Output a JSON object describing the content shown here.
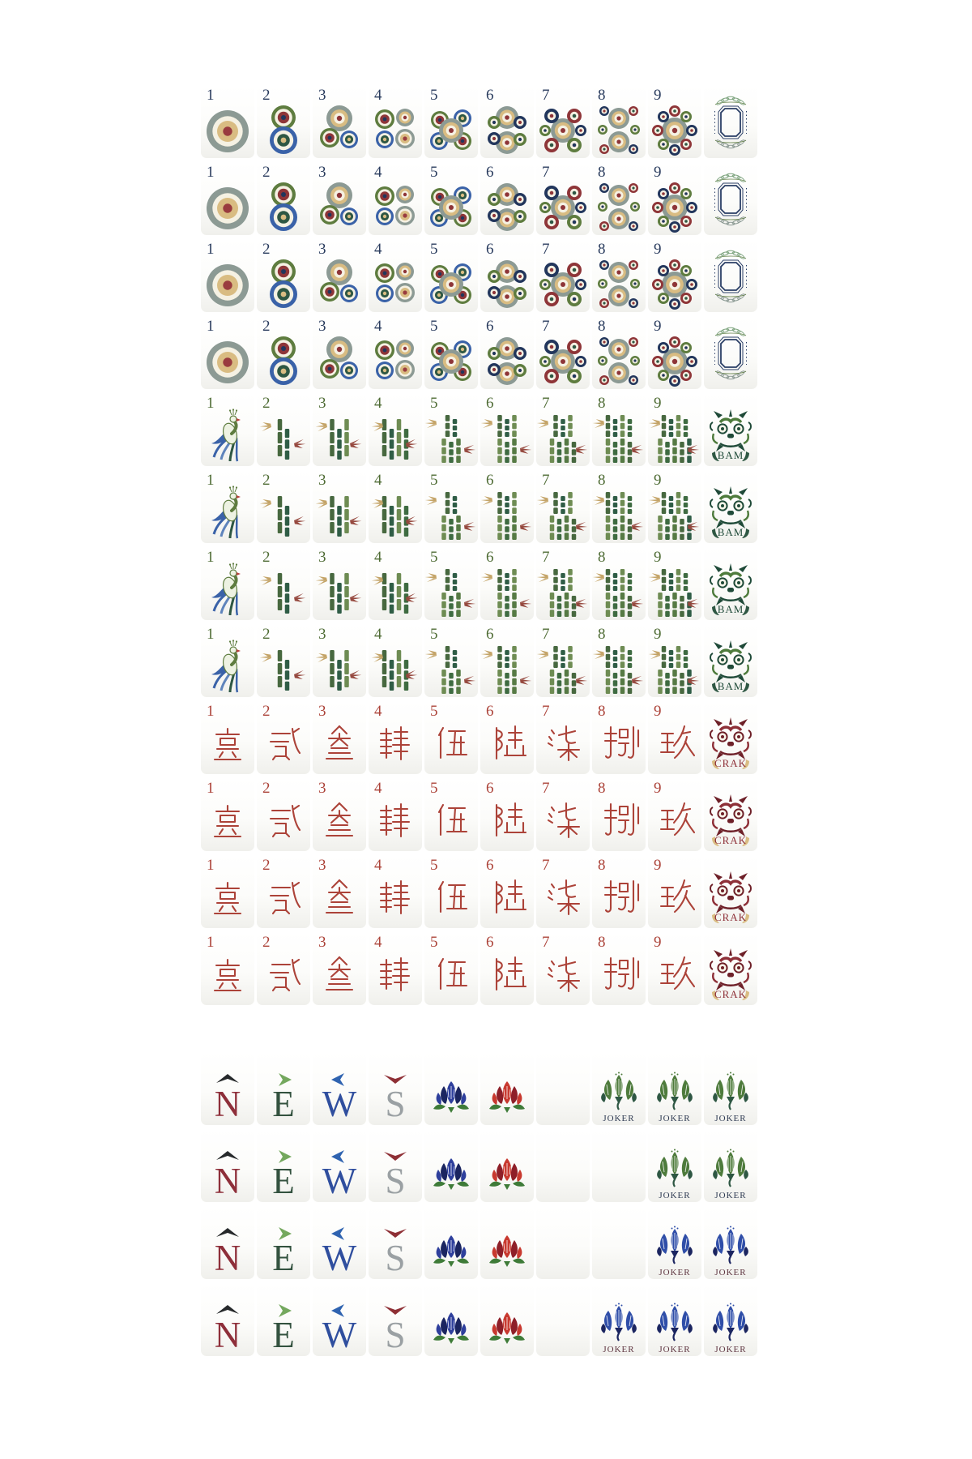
{
  "canvas": {
    "background": "#ffffff",
    "tile_face": "#fcfcfa"
  },
  "suits": {
    "dots": {
      "id": "dots",
      "rows": 4,
      "number_color": "#2A3C5E",
      "numbers": [
        "1",
        "2",
        "3",
        "4",
        "5",
        "6",
        "7",
        "8",
        "9"
      ],
      "honor": {
        "type": "white-dragon",
        "label": ""
      }
    },
    "bams": {
      "id": "bams",
      "rows": 4,
      "number_color": "#4F6C35",
      "numbers": [
        "1",
        "2",
        "3",
        "4",
        "5",
        "6",
        "7",
        "8",
        "9"
      ],
      "honor": {
        "type": "green-dragon",
        "label": "BAM",
        "label_color": "#1F4A38"
      }
    },
    "craks": {
      "id": "craks",
      "rows": 4,
      "number_color": "#AC4339",
      "numbers": [
        "1",
        "2",
        "3",
        "4",
        "5",
        "6",
        "7",
        "8",
        "9"
      ],
      "characters": [
        "壹",
        "贰",
        "叁",
        "肆",
        "伍",
        "陆",
        "柒",
        "捌",
        "玖"
      ],
      "honor": {
        "type": "red-dragon",
        "label": "CRAK",
        "label_color": "#8E3038"
      }
    }
  },
  "winds": [
    {
      "id": "n",
      "letter": "N",
      "letter_color": "#8E2F3A",
      "arrow": "up",
      "arrow_color": "#26292B"
    },
    {
      "id": "e",
      "letter": "E",
      "letter_color": "#33523F",
      "arrow": "right",
      "arrow_color": "#74A85E"
    },
    {
      "id": "w",
      "letter": "W",
      "letter_color": "#2F4E9E",
      "arrow": "left",
      "arrow_color": "#2F63B0"
    },
    {
      "id": "s",
      "letter": "S",
      "letter_color": "#9AA0A3",
      "arrow": "down",
      "arrow_color": "#8E2F35"
    }
  ],
  "flowers": {
    "blue": {
      "main": "#2E3F9C",
      "dark": "#1B2560"
    },
    "red": {
      "main": "#C8392F",
      "dark": "#8E1F28"
    },
    "leaf": "#3E7B38"
  },
  "joker": {
    "label": "JOKER",
    "green": {
      "main": "#4E7B3C",
      "dark": "#2E5743",
      "text": "#2E3A52"
    },
    "blue": {
      "main": "#2F4EA8",
      "dark": "#1B2560",
      "text": "#5E3540"
    }
  },
  "bottom_rows": [
    [
      "wind-n",
      "wind-e",
      "wind-w",
      "wind-s",
      "flower-blue",
      "flower-red",
      "blank",
      "joker-green",
      "joker-green",
      "joker-green"
    ],
    [
      "wind-n",
      "wind-e",
      "wind-w",
      "wind-s",
      "flower-blue",
      "flower-red",
      "blank",
      "blank",
      "joker-green",
      "joker-green"
    ],
    [
      "wind-n",
      "wind-e",
      "wind-w",
      "wind-s",
      "flower-blue",
      "flower-red",
      "blank",
      "blank",
      "joker-blue",
      "joker-blue"
    ],
    [
      "wind-n",
      "wind-e",
      "wind-w",
      "wind-s",
      "flower-blue",
      "flower-red",
      "blank",
      "joker-blue",
      "joker-blue",
      "joker-blue"
    ]
  ],
  "dot_palette": {
    "slate": "#8C9A94",
    "tan": "#D9BC82",
    "maroon": "#8E3538",
    "navy": "#22365C",
    "green": "#5E7C3F",
    "dkgreen": "#2E5743",
    "blue": "#3A62A8",
    "cream": "#F5F1E3"
  },
  "bam_palette": {
    "stalks": [
      "#47683F",
      "#2F5D46",
      "#6E8C53",
      "#3E6B41",
      "#567A44"
    ],
    "leaf_tan": "#C4A468",
    "leaf_maroon": "#96493F"
  }
}
